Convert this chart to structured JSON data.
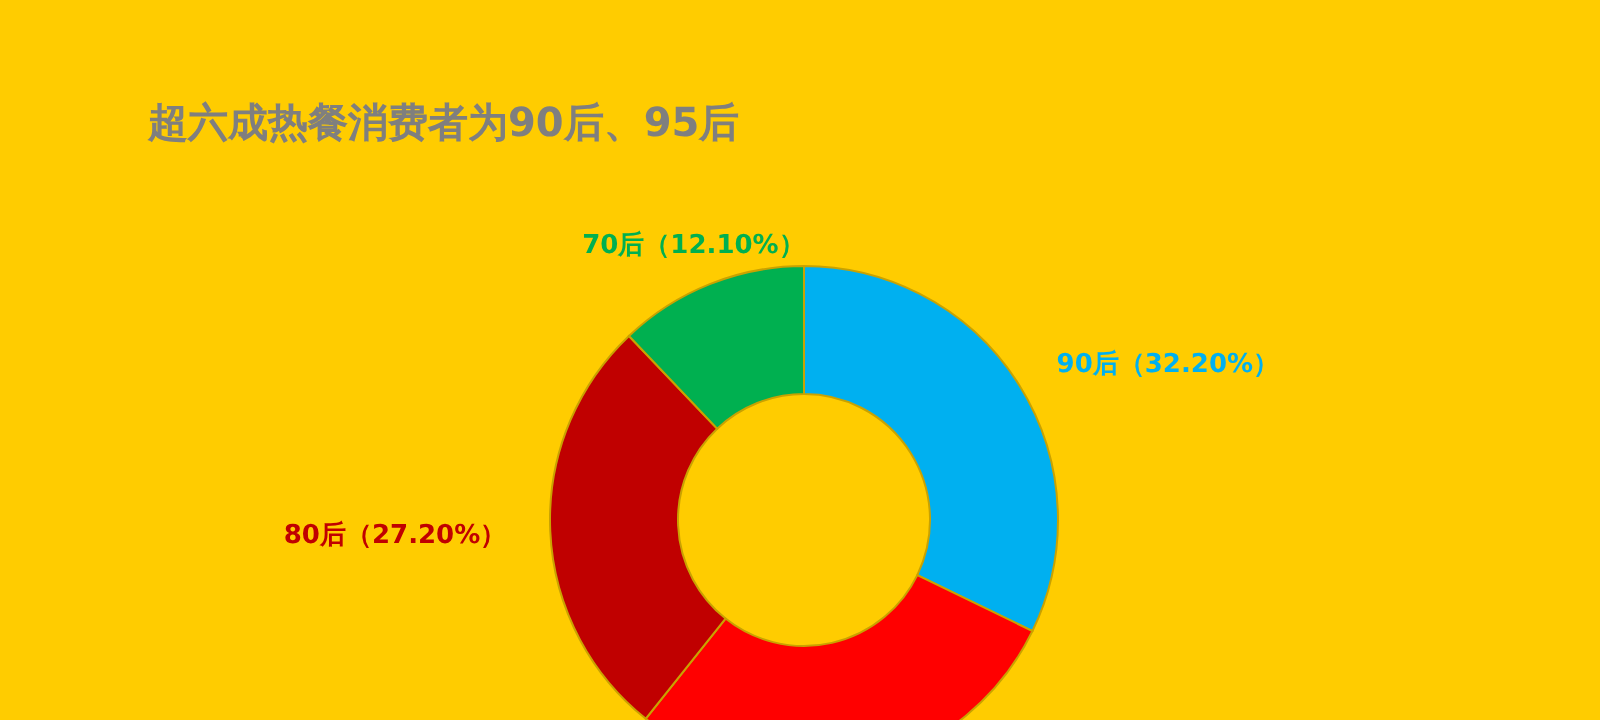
{
  "chart_data": {
    "type": "donut",
    "title": "超六成热餐消费者为90后、95后",
    "categories": [
      "90后",
      null,
      "80后",
      "70后"
    ],
    "values": [
      32.2,
      28.5,
      27.2,
      12.1
    ],
    "value_labels": [
      "（32.20%）",
      null,
      "（27.20%）",
      "（12.10%）"
    ],
    "colors": [
      "#00b0f0",
      "#ff0000",
      "#c00000",
      "#00b050"
    ]
  }
}
